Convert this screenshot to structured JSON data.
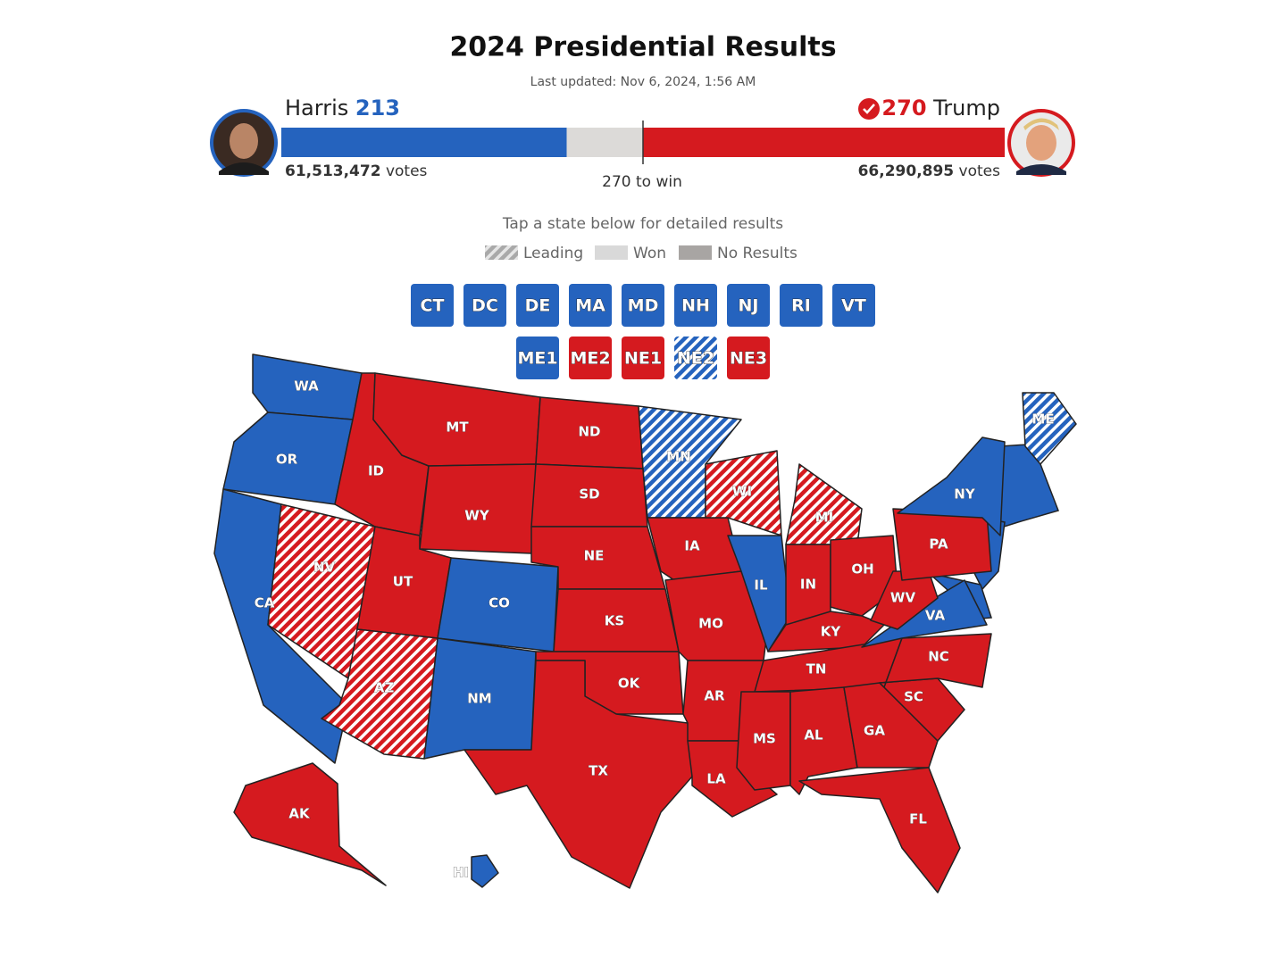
{
  "header": {
    "title": "2024 Presidential Results",
    "last_updated": "Last updated: Nov 6, 2024, 1:56 AM"
  },
  "colors": {
    "harris": "#2563be",
    "trump": "#d51a1f"
  },
  "candidates": [
    {
      "name": "Harris",
      "party": "harris",
      "electoral_votes": 213,
      "votes": "61,513,472",
      "votes_label": "votes",
      "winner": false
    },
    {
      "name": "Trump",
      "party": "trump",
      "electoral_votes": 270,
      "votes": "66,290,895",
      "votes_label": "votes",
      "winner": true
    }
  ],
  "threshold": {
    "value": 270,
    "label": "270 to win"
  },
  "instructions": "Tap a state below for detailed results",
  "legend": [
    {
      "label": "Leading",
      "style": "hatch",
      "color": "#a9a9a9"
    },
    {
      "label": "Won",
      "style": "solid",
      "color": "#d9d9d9"
    },
    {
      "label": "No Results",
      "style": "solid",
      "color": "#a8a5a3"
    }
  ],
  "buttons": [
    {
      "label": "CT",
      "party": "harris",
      "status": "won"
    },
    {
      "label": "DC",
      "party": "harris",
      "status": "won"
    },
    {
      "label": "DE",
      "party": "harris",
      "status": "won"
    },
    {
      "label": "MA",
      "party": "harris",
      "status": "won"
    },
    {
      "label": "MD",
      "party": "harris",
      "status": "won"
    },
    {
      "label": "NH",
      "party": "harris",
      "status": "won"
    },
    {
      "label": "NJ",
      "party": "harris",
      "status": "won"
    },
    {
      "label": "RI",
      "party": "harris",
      "status": "won"
    },
    {
      "label": "VT",
      "party": "harris",
      "status": "won"
    },
    {
      "label": "ME1",
      "party": "harris",
      "status": "won"
    },
    {
      "label": "ME2",
      "party": "trump",
      "status": "won"
    },
    {
      "label": "NE1",
      "party": "trump",
      "status": "won"
    },
    {
      "label": "NE2",
      "party": "harris",
      "status": "leading"
    },
    {
      "label": "NE3",
      "party": "trump",
      "status": "won"
    }
  ],
  "states": [
    {
      "label": "WA",
      "party": "harris",
      "status": "won"
    },
    {
      "label": "OR",
      "party": "harris",
      "status": "won"
    },
    {
      "label": "CA",
      "party": "harris",
      "status": "won"
    },
    {
      "label": "NV",
      "party": "trump",
      "status": "leading"
    },
    {
      "label": "ID",
      "party": "trump",
      "status": "won"
    },
    {
      "label": "MT",
      "party": "trump",
      "status": "won"
    },
    {
      "label": "WY",
      "party": "trump",
      "status": "won"
    },
    {
      "label": "UT",
      "party": "trump",
      "status": "won"
    },
    {
      "label": "CO",
      "party": "harris",
      "status": "won"
    },
    {
      "label": "AZ",
      "party": "trump",
      "status": "leading"
    },
    {
      "label": "NM",
      "party": "harris",
      "status": "won"
    },
    {
      "label": "ND",
      "party": "trump",
      "status": "won"
    },
    {
      "label": "SD",
      "party": "trump",
      "status": "won"
    },
    {
      "label": "NE",
      "party": "trump",
      "status": "won"
    },
    {
      "label": "KS",
      "party": "trump",
      "status": "won"
    },
    {
      "label": "OK",
      "party": "trump",
      "status": "won"
    },
    {
      "label": "TX",
      "party": "trump",
      "status": "won"
    },
    {
      "label": "MN",
      "party": "harris",
      "status": "leading"
    },
    {
      "label": "IA",
      "party": "trump",
      "status": "won"
    },
    {
      "label": "MO",
      "party": "trump",
      "status": "won"
    },
    {
      "label": "AR",
      "party": "trump",
      "status": "won"
    },
    {
      "label": "LA",
      "party": "trump",
      "status": "won"
    },
    {
      "label": "WI",
      "party": "trump",
      "status": "leading"
    },
    {
      "label": "IL",
      "party": "harris",
      "status": "won"
    },
    {
      "label": "MI",
      "party": "trump",
      "status": "leading"
    },
    {
      "label": "IN",
      "party": "trump",
      "status": "won"
    },
    {
      "label": "OH",
      "party": "trump",
      "status": "won"
    },
    {
      "label": "KY",
      "party": "trump",
      "status": "won"
    },
    {
      "label": "TN",
      "party": "trump",
      "status": "won"
    },
    {
      "label": "MS",
      "party": "trump",
      "status": "won"
    },
    {
      "label": "AL",
      "party": "trump",
      "status": "won"
    },
    {
      "label": "GA",
      "party": "trump",
      "status": "won"
    },
    {
      "label": "FL",
      "party": "trump",
      "status": "won"
    },
    {
      "label": "SC",
      "party": "trump",
      "status": "won"
    },
    {
      "label": "NC",
      "party": "trump",
      "status": "won"
    },
    {
      "label": "VA",
      "party": "harris",
      "status": "won"
    },
    {
      "label": "WV",
      "party": "trump",
      "status": "won"
    },
    {
      "label": "PA",
      "party": "trump",
      "status": "won"
    },
    {
      "label": "NY",
      "party": "harris",
      "status": "won"
    },
    {
      "label": "ME",
      "party": "harris",
      "status": "leading"
    },
    {
      "label": "AK",
      "party": "trump",
      "status": "won"
    },
    {
      "label": "HI",
      "party": "harris",
      "status": "won"
    }
  ]
}
